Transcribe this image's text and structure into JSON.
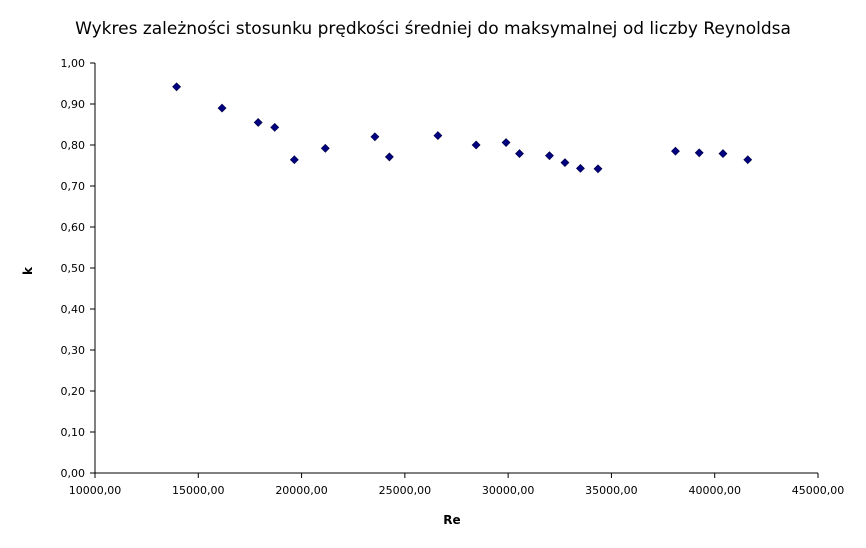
{
  "chart_data": {
    "type": "scatter",
    "title": "Wykres zależności stosunku prędkości średniej do maksymalnej od liczby Reynoldsa",
    "xlabel": "Re",
    "ylabel": "k",
    "xlim": [
      10000,
      45000
    ],
    "ylim": [
      0,
      1
    ],
    "x_ticks": [
      10000,
      15000,
      20000,
      25000,
      30000,
      35000,
      40000,
      45000
    ],
    "x_tick_labels": [
      "10000,00",
      "15000,00",
      "20000,00",
      "25000,00",
      "30000,00",
      "35000,00",
      "40000,00",
      "45000,00"
    ],
    "y_ticks": [
      0,
      0.1,
      0.2,
      0.3,
      0.4,
      0.5,
      0.6,
      0.7,
      0.8,
      0.9,
      1.0
    ],
    "y_tick_labels": [
      "0,00",
      "0,10",
      "0,20",
      "0,30",
      "0,40",
      "0,50",
      "0,60",
      "0,70",
      "0,80",
      "0,90",
      "1,00"
    ],
    "grid": false,
    "legend": "none",
    "marker": "diamond",
    "marker_color": "#000080",
    "series": [
      {
        "points": [
          {
            "x": 13950,
            "y": 0.942
          },
          {
            "x": 16150,
            "y": 0.89
          },
          {
            "x": 17900,
            "y": 0.855
          },
          {
            "x": 18700,
            "y": 0.843
          },
          {
            "x": 19650,
            "y": 0.764
          },
          {
            "x": 21150,
            "y": 0.792
          },
          {
            "x": 23550,
            "y": 0.82
          },
          {
            "x": 24250,
            "y": 0.771
          },
          {
            "x": 26600,
            "y": 0.823
          },
          {
            "x": 28450,
            "y": 0.8
          },
          {
            "x": 29900,
            "y": 0.806
          },
          {
            "x": 30550,
            "y": 0.779
          },
          {
            "x": 32000,
            "y": 0.774
          },
          {
            "x": 32750,
            "y": 0.757
          },
          {
            "x": 33500,
            "y": 0.743
          },
          {
            "x": 34350,
            "y": 0.742
          },
          {
            "x": 38100,
            "y": 0.785
          },
          {
            "x": 39250,
            "y": 0.781
          },
          {
            "x": 40400,
            "y": 0.779
          },
          {
            "x": 41600,
            "y": 0.764
          }
        ]
      }
    ]
  }
}
